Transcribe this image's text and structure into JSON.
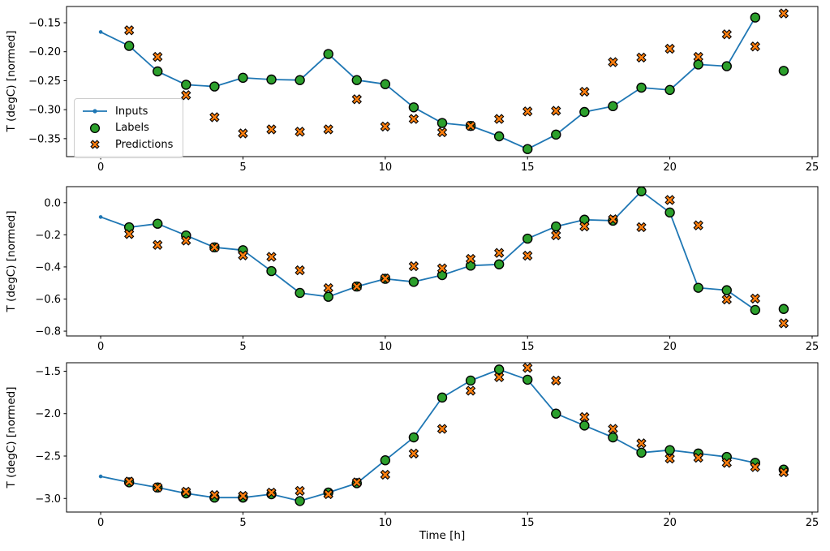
{
  "figure": {
    "xlabel": "Time [h]",
    "ylabel": "T (degC) [normed]",
    "legend": {
      "location": "center left of top subplot",
      "items": [
        {
          "label": "Inputs",
          "marker": "line-with-dot",
          "color": "#1f77b4"
        },
        {
          "label": "Labels",
          "marker": "filled-circle",
          "color": "#2ca02c"
        },
        {
          "label": "Predictions",
          "marker": "filled-x",
          "color": "#ff7f0e"
        }
      ]
    },
    "colors": {
      "inputs_line": "#1f77b4",
      "labels_fill": "#2ca02c",
      "predictions_fill": "#ff7f0e",
      "marker_edge": "#000000",
      "axes": "#000000",
      "background": "#ffffff"
    }
  },
  "chart_data": [
    {
      "type": "line",
      "title": "",
      "ylabel": "T (degC) [normed]",
      "grid": false,
      "xlim": [
        -1.2,
        25.2
      ],
      "ylim": [
        -0.381,
        -0.122
      ],
      "xticks": [
        0,
        5,
        10,
        15,
        20,
        25
      ],
      "xtick_labels": [
        "0",
        "5",
        "10",
        "15",
        "20",
        "25"
      ],
      "yticks": [
        -0.15,
        -0.2,
        -0.25,
        -0.3,
        -0.35
      ],
      "ytick_labels": [
        "−0.15",
        "−0.20",
        "−0.25",
        "−0.30",
        "−0.35"
      ],
      "series": [
        {
          "name": "Inputs",
          "style": "line-dot",
          "color": "#1f77b4",
          "x": [
            0,
            1,
            2,
            3,
            4,
            5,
            6,
            7,
            8,
            9,
            10,
            11,
            12,
            13,
            14,
            15,
            16,
            17,
            18,
            19,
            20,
            21,
            22,
            23
          ],
          "y": [
            -0.166,
            -0.19,
            -0.234,
            -0.257,
            -0.26,
            -0.245,
            -0.248,
            -0.249,
            -0.204,
            -0.249,
            -0.256,
            -0.296,
            -0.323,
            -0.328,
            -0.346,
            -0.368,
            -0.343,
            -0.304,
            -0.294,
            -0.262,
            -0.266,
            -0.222,
            -0.225,
            -0.141
          ]
        },
        {
          "name": "Labels",
          "style": "circle",
          "color": "#2ca02c",
          "edge": "#000000",
          "x": [
            1,
            2,
            3,
            4,
            5,
            6,
            7,
            8,
            9,
            10,
            11,
            12,
            13,
            14,
            15,
            16,
            17,
            18,
            19,
            20,
            21,
            22,
            23,
            24
          ],
          "y": [
            -0.19,
            -0.234,
            -0.257,
            -0.26,
            -0.245,
            -0.248,
            -0.249,
            -0.204,
            -0.249,
            -0.256,
            -0.296,
            -0.323,
            -0.328,
            -0.346,
            -0.368,
            -0.343,
            -0.304,
            -0.294,
            -0.262,
            -0.266,
            -0.222,
            -0.225,
            -0.141,
            -0.233
          ]
        },
        {
          "name": "Predictions",
          "style": "x",
          "color": "#ff7f0e",
          "edge": "#000000",
          "x": [
            1,
            2,
            3,
            4,
            5,
            6,
            7,
            8,
            9,
            10,
            11,
            12,
            13,
            14,
            15,
            16,
            17,
            18,
            19,
            20,
            21,
            22,
            23,
            24
          ],
          "y": [
            -0.163,
            -0.209,
            -0.275,
            -0.313,
            -0.341,
            -0.334,
            -0.338,
            -0.334,
            -0.282,
            -0.329,
            -0.316,
            -0.339,
            -0.328,
            -0.316,
            -0.303,
            -0.302,
            -0.269,
            -0.218,
            -0.21,
            -0.195,
            -0.209,
            -0.17,
            -0.191,
            -0.134
          ]
        }
      ]
    },
    {
      "type": "line",
      "title": "",
      "ylabel": "T (degC) [normed]",
      "grid": false,
      "xlim": [
        -1.2,
        25.2
      ],
      "ylim": [
        -0.83,
        0.1
      ],
      "xticks": [
        0,
        5,
        10,
        15,
        20,
        25
      ],
      "xtick_labels": [
        "0",
        "5",
        "10",
        "15",
        "20",
        "25"
      ],
      "yticks": [
        0.0,
        -0.2,
        -0.4,
        -0.6,
        -0.8
      ],
      "ytick_labels": [
        "0.0",
        "−0.2",
        "−0.4",
        "−0.6",
        "−0.8"
      ],
      "series": [
        {
          "name": "Inputs",
          "style": "line-dot",
          "color": "#1f77b4",
          "x": [
            0,
            1,
            2,
            3,
            4,
            5,
            6,
            7,
            8,
            9,
            10,
            11,
            12,
            13,
            14,
            15,
            16,
            17,
            18,
            19,
            20,
            21,
            22,
            23
          ],
          "y": [
            -0.089,
            -0.153,
            -0.131,
            -0.204,
            -0.278,
            -0.296,
            -0.426,
            -0.562,
            -0.586,
            -0.522,
            -0.474,
            -0.493,
            -0.451,
            -0.392,
            -0.384,
            -0.224,
            -0.148,
            -0.106,
            -0.112,
            0.071,
            -0.061,
            -0.53,
            -0.545,
            -0.668
          ]
        },
        {
          "name": "Labels",
          "style": "circle",
          "color": "#2ca02c",
          "edge": "#000000",
          "x": [
            1,
            2,
            3,
            4,
            5,
            6,
            7,
            8,
            9,
            10,
            11,
            12,
            13,
            14,
            15,
            16,
            17,
            18,
            19,
            20,
            21,
            22,
            23,
            24
          ],
          "y": [
            -0.153,
            -0.131,
            -0.204,
            -0.278,
            -0.296,
            -0.426,
            -0.562,
            -0.586,
            -0.522,
            -0.474,
            -0.493,
            -0.451,
            -0.392,
            -0.384,
            -0.224,
            -0.148,
            -0.106,
            -0.112,
            0.071,
            -0.061,
            -0.53,
            -0.545,
            -0.668,
            -0.662
          ]
        },
        {
          "name": "Predictions",
          "style": "x",
          "color": "#ff7f0e",
          "edge": "#000000",
          "x": [
            1,
            2,
            3,
            4,
            5,
            6,
            7,
            8,
            9,
            10,
            11,
            12,
            13,
            14,
            15,
            16,
            17,
            18,
            19,
            20,
            21,
            22,
            23,
            24
          ],
          "y": [
            -0.195,
            -0.263,
            -0.236,
            -0.278,
            -0.328,
            -0.337,
            -0.421,
            -0.532,
            -0.522,
            -0.472,
            -0.396,
            -0.409,
            -0.35,
            -0.313,
            -0.33,
            -0.203,
            -0.148,
            -0.103,
            -0.152,
            0.017,
            -0.141,
            -0.603,
            -0.597,
            -0.751
          ]
        }
      ]
    },
    {
      "type": "line",
      "title": "",
      "ylabel": "T (degC) [normed]",
      "xlabel": "Time [h]",
      "grid": false,
      "xlim": [
        -1.2,
        25.2
      ],
      "ylim": [
        -3.16,
        -1.4
      ],
      "xticks": [
        0,
        5,
        10,
        15,
        20,
        25
      ],
      "xtick_labels": [
        "0",
        "5",
        "10",
        "15",
        "20",
        "25"
      ],
      "yticks": [
        -1.5,
        -2.0,
        -2.5,
        -3.0
      ],
      "ytick_labels": [
        "−1.5",
        "−2.0",
        "−2.5",
        "−3.0"
      ],
      "series": [
        {
          "name": "Inputs",
          "style": "line-dot",
          "color": "#1f77b4",
          "x": [
            0,
            1,
            2,
            3,
            4,
            5,
            6,
            7,
            8,
            9,
            10,
            11,
            12,
            13,
            14,
            15,
            16,
            17,
            18,
            19,
            20,
            21,
            22,
            23
          ],
          "y": [
            -2.74,
            -2.81,
            -2.87,
            -2.94,
            -2.99,
            -2.99,
            -2.95,
            -3.03,
            -2.93,
            -2.82,
            -2.55,
            -2.28,
            -1.81,
            -1.61,
            -1.48,
            -1.6,
            -2.0,
            -2.14,
            -2.28,
            -2.46,
            -2.43,
            -2.47,
            -2.51,
            -2.58
          ]
        },
        {
          "name": "Labels",
          "style": "circle",
          "color": "#2ca02c",
          "edge": "#000000",
          "x": [
            1,
            2,
            3,
            4,
            5,
            6,
            7,
            8,
            9,
            10,
            11,
            12,
            13,
            14,
            15,
            16,
            17,
            18,
            19,
            20,
            21,
            22,
            23,
            24
          ],
          "y": [
            -2.81,
            -2.87,
            -2.94,
            -2.99,
            -2.99,
            -2.95,
            -3.03,
            -2.93,
            -2.82,
            -2.55,
            -2.28,
            -1.81,
            -1.61,
            -1.48,
            -1.6,
            -2.0,
            -2.14,
            -2.28,
            -2.46,
            -2.43,
            -2.47,
            -2.51,
            -2.58,
            -2.66
          ]
        },
        {
          "name": "Predictions",
          "style": "x",
          "color": "#ff7f0e",
          "edge": "#000000",
          "x": [
            1,
            2,
            3,
            4,
            5,
            6,
            7,
            8,
            9,
            10,
            11,
            12,
            13,
            14,
            15,
            16,
            17,
            18,
            19,
            20,
            21,
            22,
            23,
            24
          ],
          "y": [
            -2.8,
            -2.87,
            -2.92,
            -2.96,
            -2.97,
            -2.93,
            -2.91,
            -2.95,
            -2.81,
            -2.72,
            -2.47,
            -2.18,
            -1.73,
            -1.57,
            -1.46,
            -1.61,
            -2.04,
            -2.18,
            -2.35,
            -2.53,
            -2.52,
            -2.58,
            -2.63,
            -2.69
          ]
        }
      ]
    }
  ]
}
